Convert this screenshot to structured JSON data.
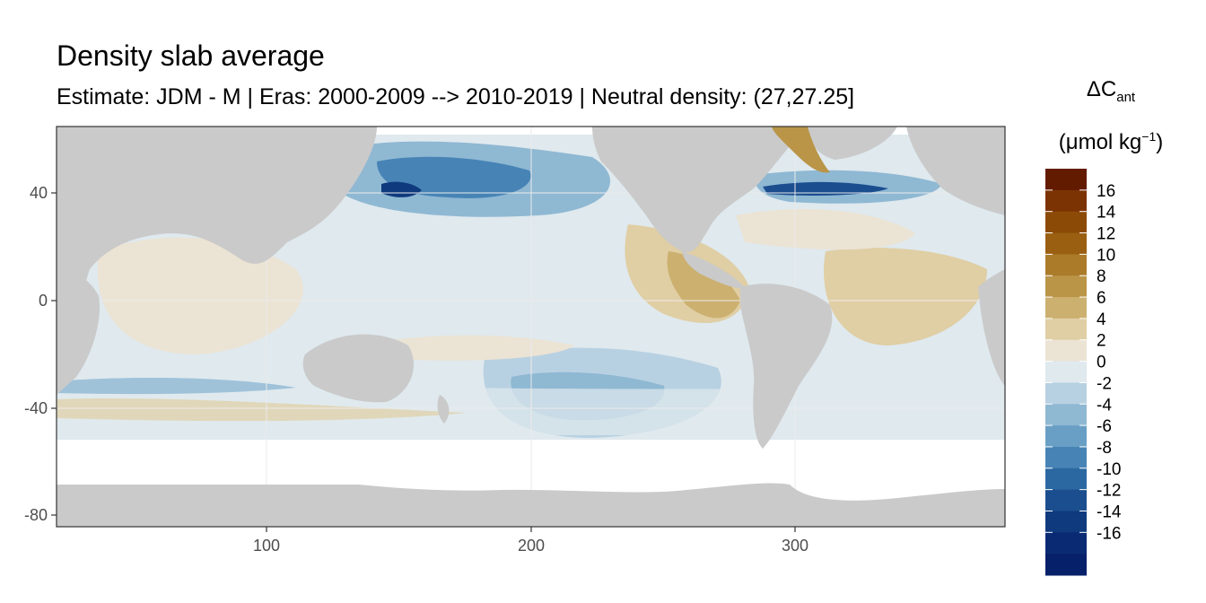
{
  "title": "Density slab average",
  "subtitle": "Estimate: JDM - M | Eras: 2000-2009 --> 2010-2019 | Neutral density: (27,27.25]",
  "legend": {
    "title_prefix": "ΔC",
    "title_subscript": "ant",
    "unit_prefix": "(μmol kg",
    "unit_superscript": "−1",
    "unit_suffix": ")",
    "tick_labels": [
      "16",
      "14",
      "12",
      "10",
      "8",
      "6",
      "4",
      "2",
      "0",
      "-2",
      "-4",
      "-6",
      "-8",
      "-10",
      "-12",
      "-14",
      "-16"
    ],
    "colors": [
      "#631b00",
      "#7c3304",
      "#8c4a07",
      "#9a5f10",
      "#ab7b2a",
      "#ba9548",
      "#ccb06f",
      "#e0cea4",
      "#ebe3d4",
      "#dfe9ee",
      "#b8d1e2",
      "#8fb8d3",
      "#6a9fc5",
      "#4784b5",
      "#2b68a1",
      "#1b4e8f",
      "#0f3a7e",
      "#0a2b73",
      "#06206a"
    ]
  },
  "chart_data": {
    "type": "heatmap",
    "title": "Density slab average",
    "subtitle": "Estimate: JDM - M | Eras: 2000-2009 --> 2010-2019 | Neutral density: (27,27.25]",
    "xlim": [
      20,
      380
    ],
    "ylim": [
      -85,
      64
    ],
    "x_ticks": [
      100,
      200,
      300
    ],
    "y_ticks": [
      40,
      0,
      -40,
      -80
    ],
    "grid": true,
    "land_color": "#cacaca",
    "fill_variable": "ΔC_ant (μmol kg−1)",
    "color_range": [
      -18,
      18
    ],
    "legend_placement": "right"
  }
}
